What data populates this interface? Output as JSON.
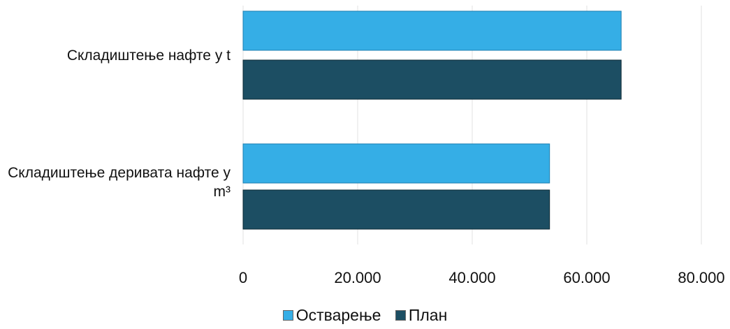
{
  "chart_data": {
    "type": "bar",
    "orientation": "horizontal",
    "categories": [
      "Складиштење нафте у t",
      "Складиштење деривата нафте у m³"
    ],
    "series": [
      {
        "name": "Остварење",
        "color": "#35aee6",
        "values": [
          66000,
          53500
        ]
      },
      {
        "name": "План",
        "color": "#1c4e63",
        "values": [
          66000,
          53500
        ]
      }
    ],
    "xlim": [
      0,
      80000
    ],
    "xticks": [
      "0",
      "20.000",
      "40.000",
      "60.000",
      "80.000"
    ],
    "grid": true,
    "legend_position": "bottom"
  }
}
